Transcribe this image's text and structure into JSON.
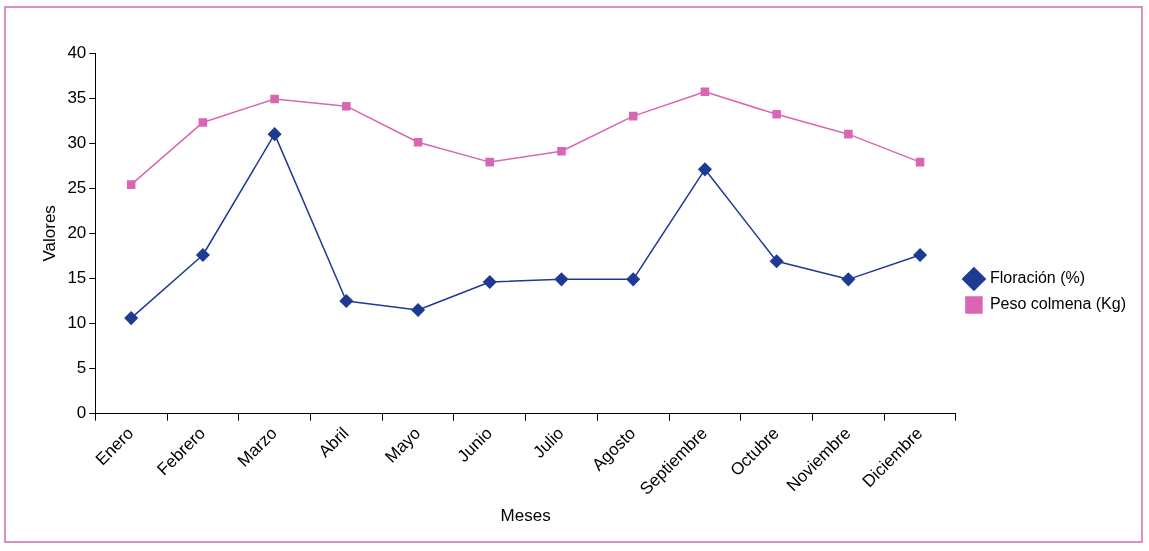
{
  "chart_data": {
    "type": "line",
    "xlabel": "Meses",
    "ylabel": "Valores",
    "categories": [
      "Enero",
      "Febrero",
      "Marzo",
      "Abril",
      "Mayo",
      "Junio",
      "Julio",
      "Agosto",
      "Septiembre",
      "Octubre",
      "Noviembre",
      "Diciembre"
    ],
    "series": [
      {
        "name": "Floración (%)",
        "color": "#1f3a93",
        "marker": "diamond",
        "values": [
          10.6,
          17.6,
          31,
          12.5,
          11.5,
          14.6,
          14.9,
          14.9,
          27.1,
          16.9,
          14.9,
          17.6
        ]
      },
      {
        "name": "Peso colmena (Kg)",
        "color": "#d966b4",
        "marker": "square",
        "values": [
          25.4,
          32.3,
          34.9,
          34.1,
          30.1,
          27.9,
          29.1,
          33,
          35.7,
          33.2,
          31,
          27.9
        ]
      }
    ],
    "ylim": [
      0,
      40
    ],
    "yticks": [
      0,
      5,
      10,
      15,
      20,
      25,
      30,
      35,
      40
    ],
    "grid": false,
    "legend": "right",
    "line_style": "solid"
  }
}
